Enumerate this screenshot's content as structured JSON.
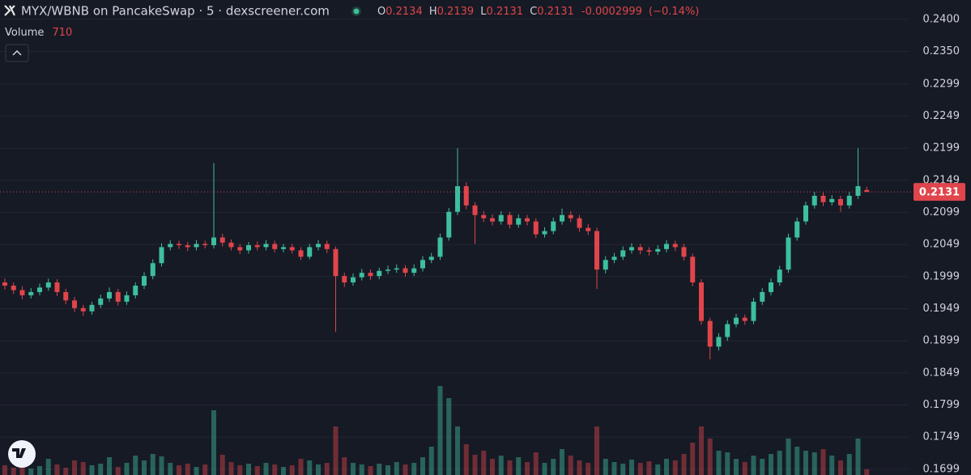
{
  "chart_data": {
    "type": "candlestick",
    "title": "MYX/WBNB on PancakeSwap · 5 · dexscreener.com",
    "legend": {
      "open_label": "O",
      "open": 0.2134,
      "high_label": "H",
      "high": 0.2139,
      "low_label": "L",
      "low": 0.2131,
      "close_label": "C",
      "close": 0.2131,
      "change": -0.0002999,
      "change_pct": "(−0.14%)"
    },
    "volume_label": "Volume",
    "volume_last": 710,
    "last_price": 0.2131,
    "up_color": "#3dbf9e",
    "down_color": "#e0454b",
    "grid": true,
    "ylim": [
      0.169,
      0.243
    ],
    "yticks": [
      {
        "value": 0.24,
        "label": "0.2400"
      },
      {
        "value": 0.235,
        "label": "0.2350"
      },
      0.2299,
      0.2249,
      0.2199,
      0.2149,
      0.2099,
      0.2049,
      0.1999,
      0.1949,
      0.1899,
      0.1849,
      0.1799,
      0.1749,
      0.1699
    ],
    "y2lim": [
      0,
      14000
    ],
    "open": [
      0.199,
      0.1985,
      0.1978,
      0.197,
      0.1975,
      0.1982,
      0.199,
      0.1975,
      0.1962,
      0.195,
      0.1945,
      0.1955,
      0.1965,
      0.1975,
      0.196,
      0.197,
      0.1985,
      0.2,
      0.202,
      0.2045,
      0.205,
      0.2048,
      0.2045,
      0.205,
      0.2048,
      0.206,
      0.2052,
      0.2045,
      0.204,
      0.2048,
      0.2045,
      0.205,
      0.2042,
      0.2045,
      0.204,
      0.203,
      0.2045,
      0.205,
      0.2042,
      0.2,
      0.199,
      0.1998,
      0.2005,
      0.2,
      0.2008,
      0.201,
      0.2012,
      0.2005,
      0.2012,
      0.2025,
      0.203,
      0.206,
      0.21,
      0.214,
      0.211,
      0.2095,
      0.209,
      0.2085,
      0.2095,
      0.208,
      0.209,
      0.2085,
      0.2065,
      0.207,
      0.2085,
      0.2095,
      0.209,
      0.2075,
      0.207,
      0.201,
      0.2025,
      0.203,
      0.204,
      0.2045,
      0.204,
      0.2038,
      0.2042,
      0.205,
      0.2045,
      0.203,
      0.199,
      0.193,
      0.189,
      0.1905,
      0.1925,
      0.1935,
      0.193,
      0.196,
      0.1975,
      0.199,
      0.201,
      0.206,
      0.2085,
      0.211,
      0.2125,
      0.2115,
      0.212,
      0.211,
      0.2125,
      0.2134
    ],
    "high": [
      0.1996,
      0.199,
      0.1984,
      0.1981,
      0.1988,
      0.1996,
      0.1995,
      0.198,
      0.1967,
      0.1955,
      0.196,
      0.1971,
      0.1982,
      0.198,
      0.1976,
      0.199,
      0.2006,
      0.2026,
      0.2051,
      0.2056,
      0.2055,
      0.2053,
      0.2056,
      0.2055,
      0.2176,
      0.2066,
      0.2057,
      0.205,
      0.2053,
      0.2054,
      0.2056,
      0.2055,
      0.205,
      0.205,
      0.2045,
      0.205,
      0.2056,
      0.2055,
      0.2046,
      0.2005,
      0.2004,
      0.2011,
      0.201,
      0.2013,
      0.2016,
      0.2018,
      0.2017,
      0.2018,
      0.2031,
      0.2036,
      0.2066,
      0.2106,
      0.2199,
      0.2146,
      0.2115,
      0.2101,
      0.2096,
      0.2101,
      0.21,
      0.2096,
      0.2095,
      0.209,
      0.2076,
      0.2091,
      0.2105,
      0.2101,
      0.2095,
      0.2081,
      0.2075,
      0.2031,
      0.2036,
      0.2046,
      0.2051,
      0.205,
      0.2045,
      0.2048,
      0.2056,
      0.2055,
      0.205,
      0.2035,
      0.1995,
      0.1935,
      0.1911,
      0.1931,
      0.1941,
      0.194,
      0.1966,
      0.1981,
      0.1996,
      0.2016,
      0.2066,
      0.2091,
      0.2116,
      0.2131,
      0.213,
      0.2126,
      0.2125,
      0.2131,
      0.2199,
      0.2139
    ],
    "low": [
      0.1979,
      0.1972,
      0.1964,
      0.1965,
      0.197,
      0.1977,
      0.1969,
      0.1956,
      0.1944,
      0.1938,
      0.194,
      0.195,
      0.196,
      0.1954,
      0.1955,
      0.1965,
      0.198,
      0.1995,
      0.2015,
      0.204,
      0.2042,
      0.2039,
      0.204,
      0.2043,
      0.2043,
      0.2046,
      0.204,
      0.2034,
      0.2035,
      0.204,
      0.204,
      0.2037,
      0.2037,
      0.2035,
      0.2025,
      0.2026,
      0.204,
      0.2036,
      0.1913,
      0.1983,
      0.1985,
      0.1993,
      0.1994,
      0.1995,
      0.2003,
      0.2005,
      0.1999,
      0.2,
      0.2007,
      0.202,
      0.2025,
      0.2055,
      0.2095,
      0.2104,
      0.205,
      0.2084,
      0.2079,
      0.208,
      0.2074,
      0.2075,
      0.2079,
      0.2059,
      0.206,
      0.2065,
      0.208,
      0.2084,
      0.2069,
      0.2064,
      0.198,
      0.2004,
      0.202,
      0.2025,
      0.2035,
      0.2034,
      0.2032,
      0.2033,
      0.2037,
      0.2039,
      0.2024,
      0.1984,
      0.1924,
      0.187,
      0.1884,
      0.1899,
      0.192,
      0.1924,
      0.1925,
      0.1955,
      0.197,
      0.1985,
      0.2005,
      0.2055,
      0.208,
      0.2105,
      0.2109,
      0.211,
      0.21,
      0.2105,
      0.212,
      0.2131
    ],
    "close": [
      0.1985,
      0.1978,
      0.197,
      0.1975,
      0.1982,
      0.199,
      0.1975,
      0.1962,
      0.195,
      0.1945,
      0.1955,
      0.1965,
      0.1975,
      0.196,
      0.197,
      0.1985,
      0.2,
      0.202,
      0.2045,
      0.205,
      0.2048,
      0.2045,
      0.205,
      0.2048,
      0.206,
      0.2052,
      0.2045,
      0.204,
      0.2048,
      0.2045,
      0.205,
      0.2042,
      0.2045,
      0.204,
      0.203,
      0.2045,
      0.205,
      0.2042,
      0.2,
      0.199,
      0.1998,
      0.2005,
      0.2,
      0.2008,
      0.201,
      0.2012,
      0.2005,
      0.2012,
      0.2025,
      0.203,
      0.206,
      0.21,
      0.214,
      0.211,
      0.2095,
      0.209,
      0.2085,
      0.2095,
      0.208,
      0.209,
      0.2085,
      0.2065,
      0.207,
      0.2085,
      0.2095,
      0.209,
      0.2075,
      0.207,
      0.201,
      0.2025,
      0.203,
      0.204,
      0.2045,
      0.204,
      0.2038,
      0.2042,
      0.205,
      0.2045,
      0.203,
      0.199,
      0.193,
      0.189,
      0.1905,
      0.1925,
      0.1935,
      0.193,
      0.196,
      0.1975,
      0.199,
      0.201,
      0.206,
      0.2085,
      0.211,
      0.2125,
      0.2115,
      0.212,
      0.211,
      0.2125,
      0.214,
      0.2131
    ],
    "volume": [
      1200,
      900,
      1500,
      800,
      1100,
      2000,
      1300,
      900,
      1800,
      1600,
      1200,
      1400,
      2200,
      1000,
      1500,
      2400,
      1800,
      2600,
      2300,
      1500,
      1200,
      1400,
      1000,
      1300,
      8000,
      2500,
      1600,
      1200,
      1400,
      1100,
      1500,
      1300,
      1000,
      1200,
      2000,
      1800,
      1300,
      1500,
      6000,
      2200,
      1500,
      1300,
      1100,
      1400,
      1200,
      1600,
      1300,
      1500,
      2200,
      3500,
      11000,
      9500,
      6000,
      3800,
      2500,
      3000,
      2000,
      2400,
      1800,
      2200,
      1600,
      2800,
      1500,
      2000,
      3200,
      2400,
      1800,
      1500,
      6000,
      2000,
      1600,
      1400,
      1900,
      1500,
      1700,
      1300,
      2000,
      1800,
      2600,
      4000,
      6000,
      4500,
      3000,
      2800,
      2000,
      1600,
      2400,
      2000,
      2600,
      3000,
      4500,
      3500,
      3000,
      2800,
      3200,
      2400,
      1800,
      2600,
      4500,
      710
    ]
  }
}
